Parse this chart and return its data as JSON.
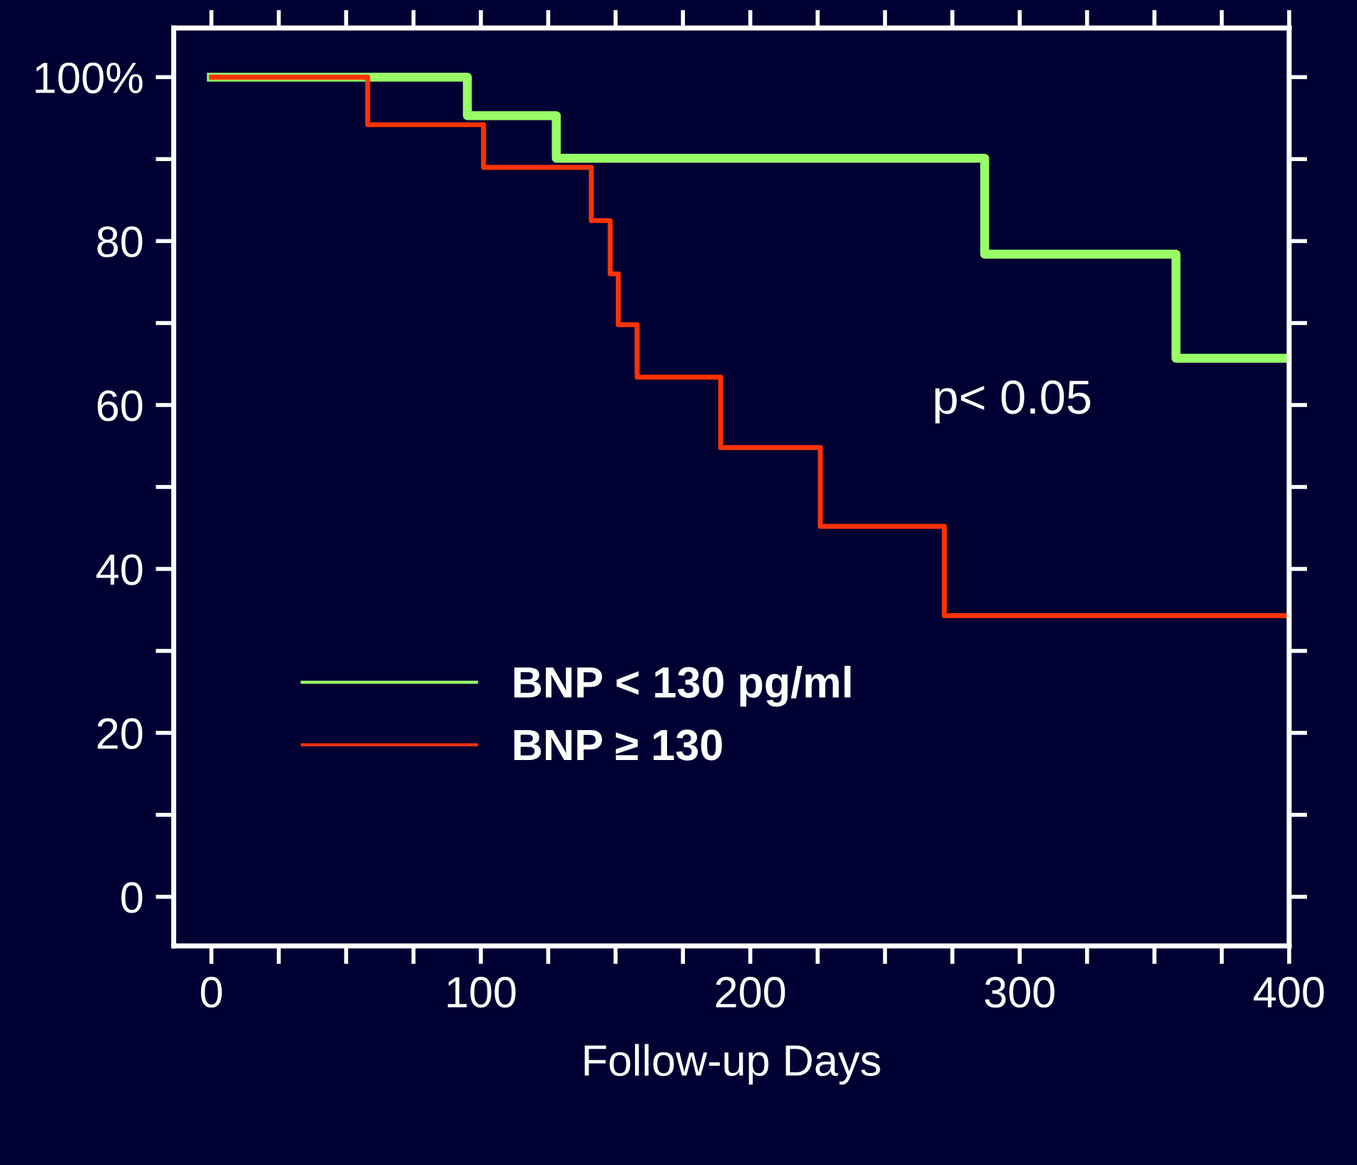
{
  "chart_data": {
    "type": "step",
    "xlabel": "Follow-up Days",
    "series": [
      {
        "name": "BNP < 130 pg/ml",
        "color": "#99ff66",
        "x": [
          0,
          95,
          128,
          287,
          358,
          400
        ],
        "values": [
          100,
          95.3,
          90.1,
          78.4,
          65.7,
          65.7
        ]
      },
      {
        "name": "BNP ≥ 130",
        "color": "#ff3300",
        "x": [
          0,
          58,
          101,
          141,
          148,
          151,
          158,
          189,
          226,
          272,
          400
        ],
        "values": [
          100,
          94.2,
          89,
          82.5,
          76,
          69.8,
          63.4,
          54.8,
          45.2,
          34.3,
          34.3
        ]
      }
    ],
    "xlim": [
      -14,
      400
    ],
    "ylim": [
      -6,
      106
    ],
    "xticks": [
      0,
      {
        "value": 25,
        "label": null
      },
      {
        "value": 50,
        "label": null
      },
      {
        "value": 75,
        "label": null
      },
      100,
      {
        "value": 125,
        "label": null
      },
      {
        "value": 150,
        "label": null
      },
      {
        "value": 175,
        "label": null
      },
      200,
      {
        "value": 225,
        "label": null
      },
      {
        "value": 250,
        "label": null
      },
      {
        "value": 275,
        "label": null
      },
      300,
      {
        "value": 325,
        "label": null
      },
      {
        "value": 350,
        "label": null
      },
      {
        "value": 375,
        "label": null
      },
      400
    ],
    "yticks": [
      0,
      {
        "value": 10,
        "label": null
      },
      20,
      {
        "value": 30,
        "label": null
      },
      40,
      {
        "value": 50,
        "label": null
      },
      60,
      {
        "value": 70,
        "label": null
      },
      80,
      {
        "value": 90,
        "label": null
      },
      {
        "value": 100,
        "label": "100%"
      }
    ],
    "annotations": [
      "p< 0.05"
    ],
    "legend": "bottom left",
    "grid": false,
    "marker": "none",
    "line_style": "solid"
  }
}
